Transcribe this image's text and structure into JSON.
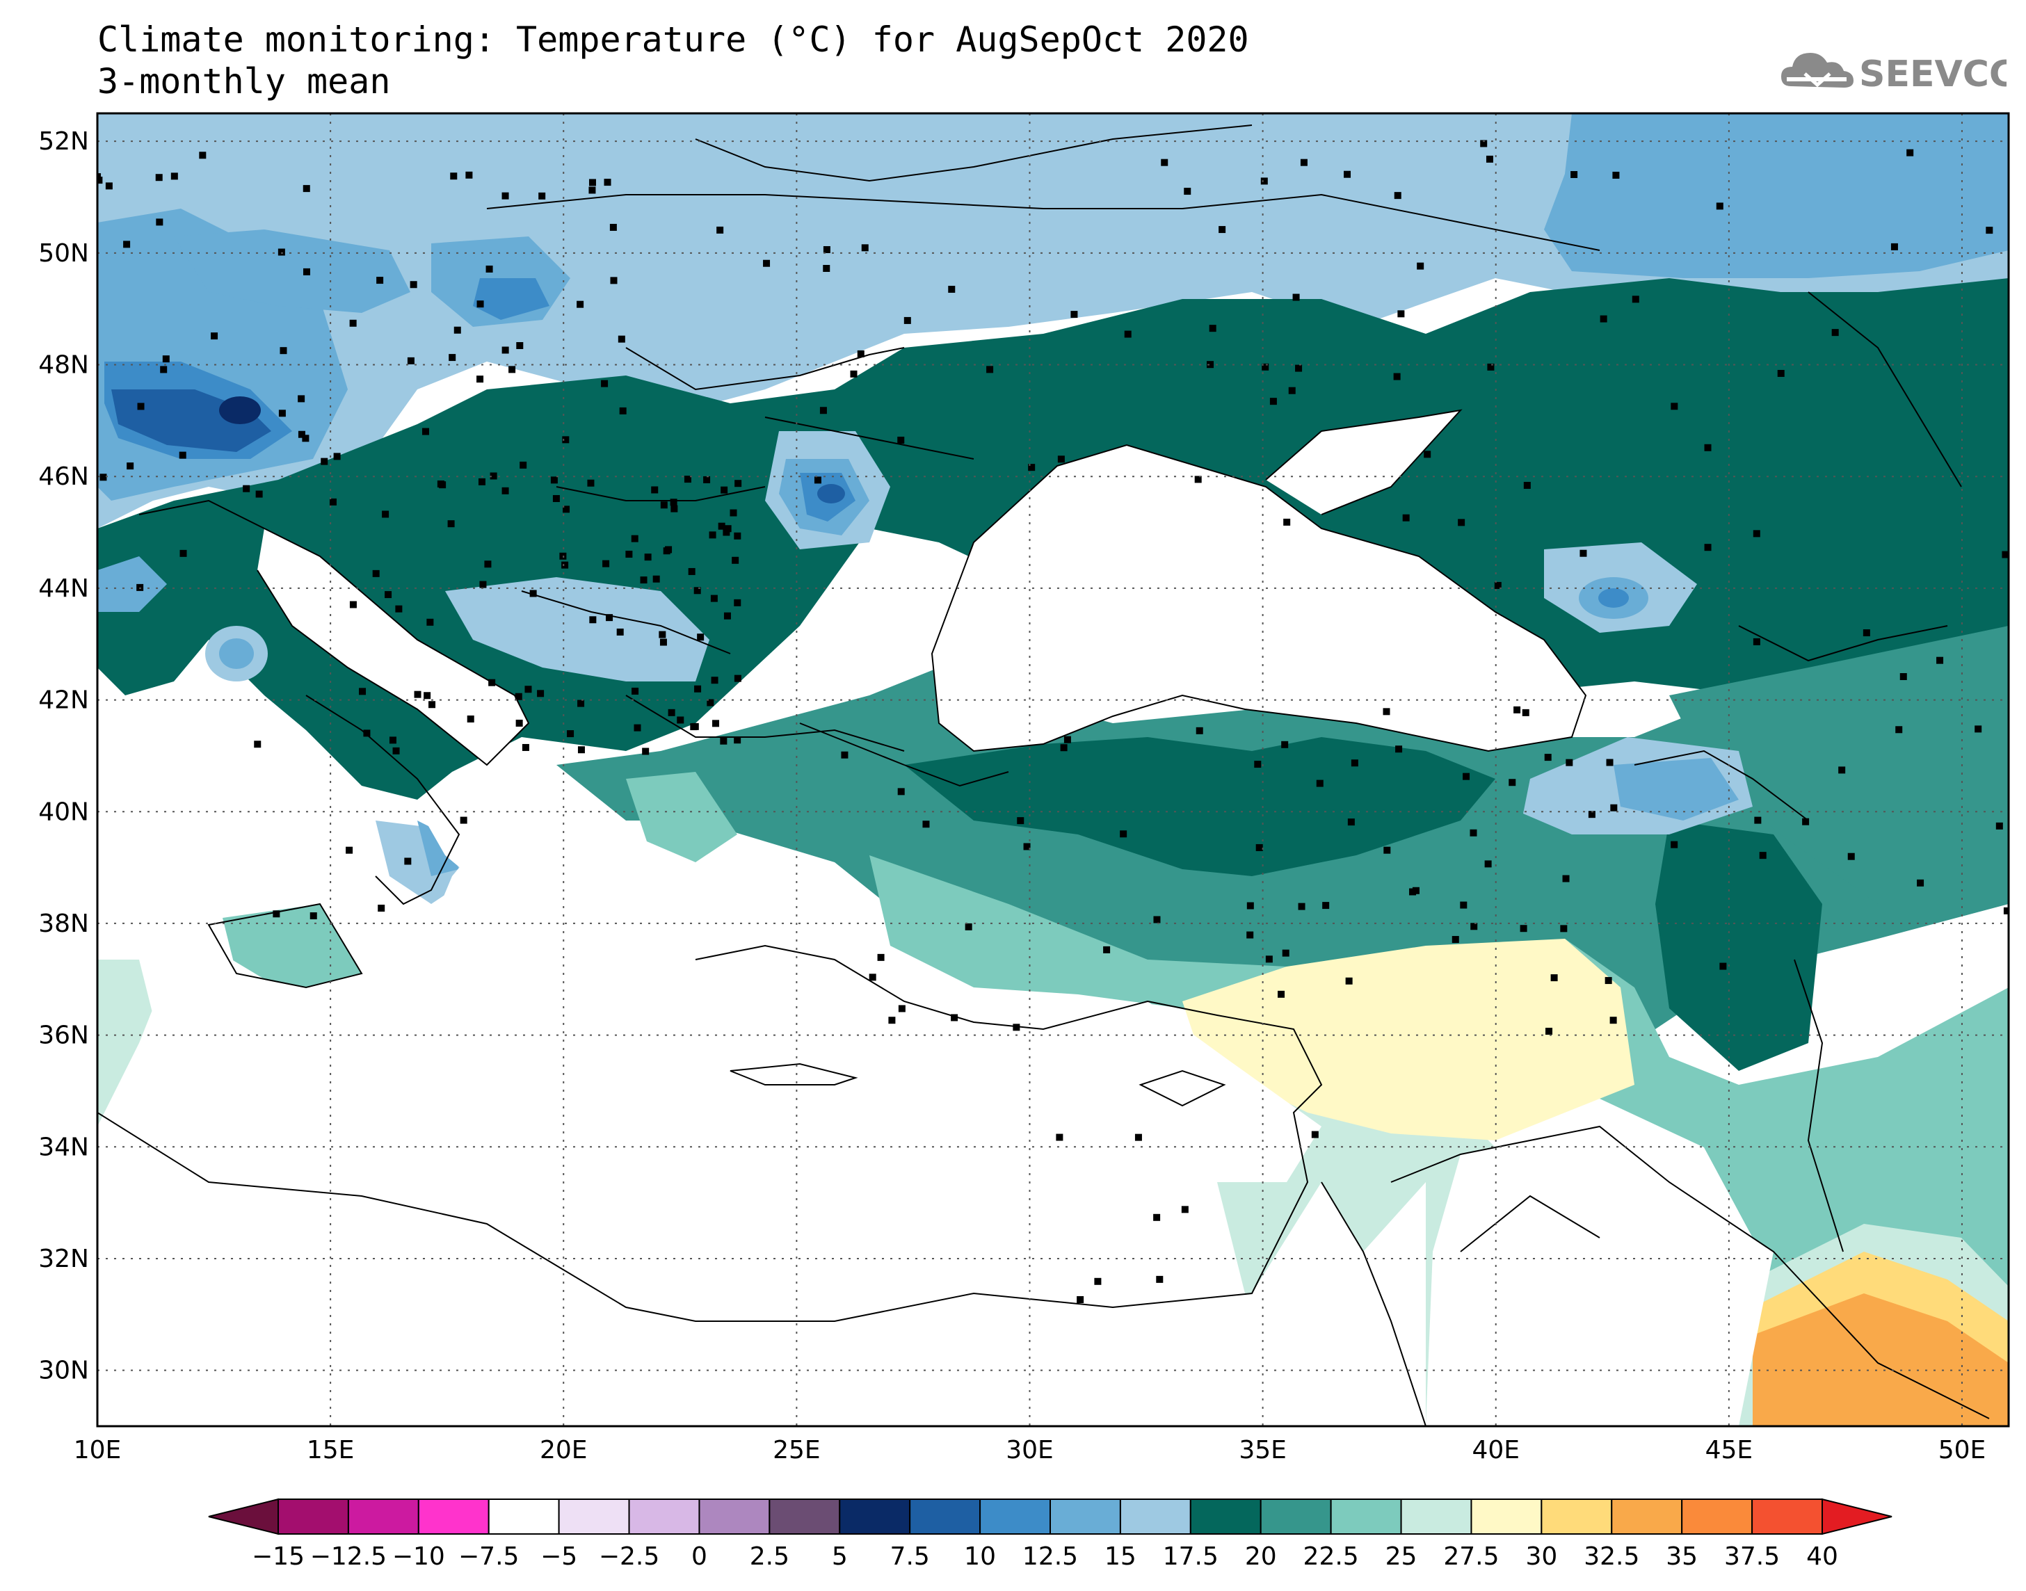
{
  "title": {
    "line1": "Climate monitoring: Temperature (°C) for AugSepOct 2020",
    "line2": "3-monthly mean"
  },
  "logo": {
    "text": "SEEVCCC",
    "icon": "cloud-icon"
  },
  "map": {
    "lon_range": [
      10,
      51
    ],
    "lat_range": [
      29,
      52.5
    ],
    "x_ticks": [
      "10E",
      "15E",
      "20E",
      "25E",
      "30E",
      "35E",
      "40E",
      "45E",
      "50E"
    ],
    "y_ticks": [
      "52N",
      "50N",
      "48N",
      "46N",
      "44N",
      "42N",
      "40N",
      "38N",
      "36N",
      "34N",
      "32N",
      "30N"
    ],
    "grid": "dotted",
    "station_marker": "black-square"
  },
  "colorbar": {
    "labels": [
      "−15",
      "−12.5",
      "−10",
      "−7.5",
      "−5",
      "−2.5",
      "0",
      "2.5",
      "5",
      "7.5",
      "10",
      "12.5",
      "15",
      "17.5",
      "20",
      "22.5",
      "25",
      "27.5",
      "30",
      "32.5",
      "35",
      "37.5",
      "40"
    ],
    "colors": [
      "#6b0f3c",
      "#a30e6e",
      "#cc1aa0",
      "#ff33cc",
      "#ffffff",
      "#eee0f5",
      "#d8b8e6",
      "#ad87bf",
      "#6b4d73",
      "#0a2a66",
      "#1e5fa3",
      "#3d8cc8",
      "#69add6",
      "#9ec9e2",
      "#04675c",
      "#36968c",
      "#7dcbbd",
      "#c9ebe0",
      "#fff9c6",
      "#ffdb7a",
      "#f9a94a",
      "#fa8a3a",
      "#f45130",
      "#e31c22"
    ]
  }
}
